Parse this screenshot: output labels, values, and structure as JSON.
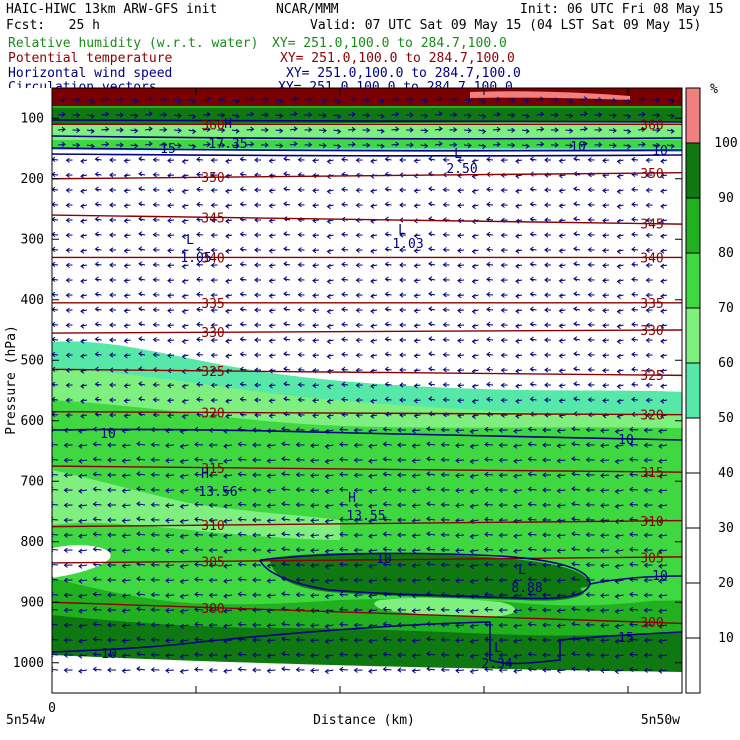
{
  "header": {
    "title_left": "HAIC-HIWC 13km ARW-GFS init",
    "center": "NCAR/MMM",
    "init": "Init: 06 UTC Fri 08 May 15",
    "fcst": "Fcst:   25 h",
    "valid": "Valid: 07 UTC Sat 09 May 15 (04 LST Sat 09 May 15)"
  },
  "fields": [
    {
      "name": "Relative humidity (w.r.t. water)",
      "xy": "XY= 251.0,100.0 to 284.7,100.0",
      "color": "#1a8a1a"
    },
    {
      "name": "Potential temperature",
      "xy": "XY= 251.0,100.0 to 284.7,100.0",
      "color": "#8b0000"
    },
    {
      "name": "Horizontal wind speed",
      "xy": "XY= 251.0,100.0 to 284.7,100.0",
      "color": "#000080"
    },
    {
      "name": "Circulation vectors",
      "xy": "XY= 251.0,100.0 to 284.7,100.0",
      "color": "#000080"
    }
  ],
  "chart_data": {
    "type": "cross-section",
    "ylabel": "Pressure (hPa)",
    "xlabel": "Distance (km)",
    "y_ticks": [
      100,
      200,
      300,
      400,
      500,
      600,
      700,
      800,
      900,
      1000
    ],
    "ylim": [
      1050,
      50
    ],
    "x_tick_zero": "0",
    "x_left_label": "5n54w",
    "x_right_label": "5n50w",
    "colorbar": {
      "unit": "%",
      "levels": [
        10,
        20,
        30,
        40,
        50,
        60,
        70,
        80,
        90,
        100
      ],
      "colors": [
        "#ffffff",
        "#ffffff",
        "#ffffff",
        "#ffffff",
        "#ffffff",
        "#55e8a8",
        "#7ff07f",
        "#40d840",
        "#20b020",
        "#107810",
        "#f08080"
      ]
    },
    "theta_isentropes": [
      {
        "label": "300",
        "p_left": 900,
        "p_right": 935
      },
      {
        "label": "305",
        "p_left": 835,
        "p_right": 825
      },
      {
        "label": "310",
        "p_left": 775,
        "p_right": 765
      },
      {
        "label": "315",
        "p_left": 675,
        "p_right": 685
      },
      {
        "label": "320",
        "p_left": 585,
        "p_right": 590
      },
      {
        "label": "325",
        "p_left": 515,
        "p_right": 525
      },
      {
        "label": "330",
        "p_left": 455,
        "p_right": 450
      },
      {
        "label": "335",
        "p_left": 405,
        "p_right": 405
      },
      {
        "label": "340",
        "p_left": 330,
        "p_right": 330
      },
      {
        "label": "345",
        "p_left": 260,
        "p_right": 275
      },
      {
        "label": "350",
        "p_left": 200,
        "p_right": 190
      },
      {
        "label": "360",
        "p_left": 110,
        "p_right": 110
      }
    ],
    "wind_speed_labels": [
      "10",
      "10",
      "10",
      "10",
      "10",
      "15",
      "15",
      "10",
      "10"
    ],
    "extrema": [
      {
        "type": "H",
        "value": "13.56"
      },
      {
        "type": "H",
        "value": "13.55"
      },
      {
        "type": "H",
        "value": "17.35"
      },
      {
        "type": "L",
        "value": "1.05"
      },
      {
        "type": "L",
        "value": "1.03"
      },
      {
        "type": "L",
        "value": "2.50"
      },
      {
        "type": "L",
        "value": "8.88"
      },
      {
        "type": "L",
        "value": "2.34"
      }
    ]
  }
}
